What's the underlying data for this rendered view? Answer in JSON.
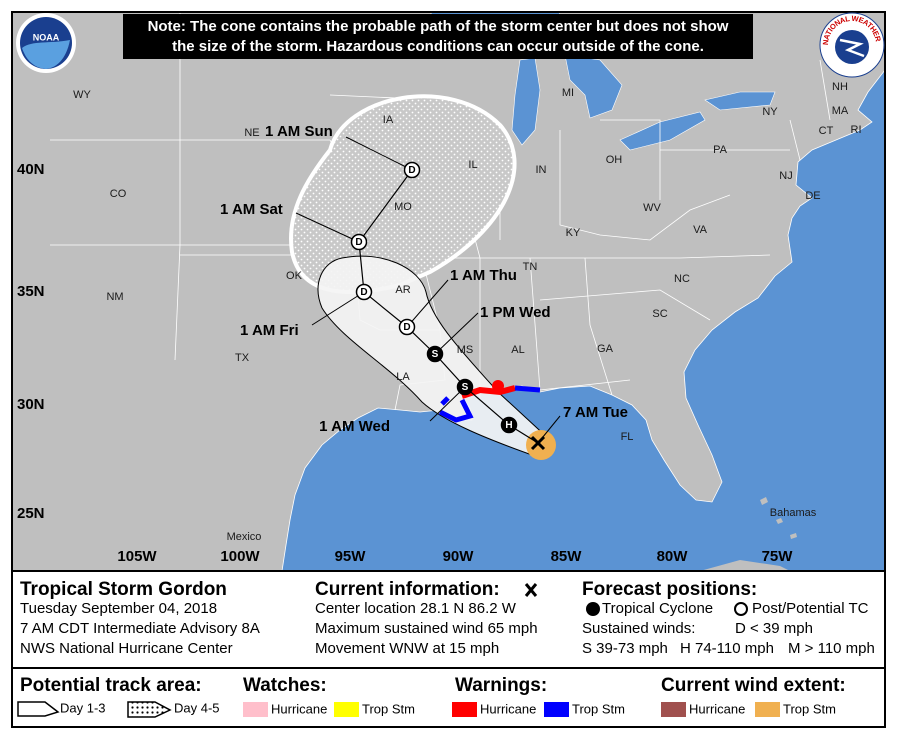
{
  "note": [
    "Note: The cone contains the probable path of the storm center but does not show",
    "the size of the storm. Hazardous conditions can occur outside of the cone."
  ],
  "logos": {
    "noaa": "NOAA",
    "nws": "NATIONAL WEATHER SERVICE"
  },
  "map": {
    "places": [
      "WY",
      "NE",
      "IA",
      "IL",
      "IN",
      "OH",
      "MI",
      "PA",
      "NY",
      "NH",
      "MA",
      "CT",
      "RI",
      "NJ",
      "DE",
      "CO",
      "MO",
      "KY",
      "WV",
      "VA",
      "TN",
      "NC",
      "OK",
      "AR",
      "NM",
      "SC",
      "MS",
      "AL",
      "GA",
      "TX",
      "LA",
      "FL",
      "Mexico",
      "Bahamas"
    ],
    "latitudes": [
      "40N",
      "35N",
      "30N",
      "25N"
    ],
    "longitudes": [
      "105W",
      "100W",
      "95W",
      "90W",
      "85W",
      "80W",
      "75W"
    ],
    "current_time": "7 AM Tue",
    "forecast": [
      {
        "time": null,
        "letter": "H"
      },
      {
        "time": "1 AM Wed",
        "letter": "S"
      },
      {
        "time": "1 PM Wed",
        "letter": "S"
      },
      {
        "time": "1 AM Thu",
        "letter": "D"
      },
      {
        "time": "1 AM Fri",
        "letter": "D"
      },
      {
        "time": "1 AM Sat",
        "letter": "D"
      },
      {
        "time": "1 AM Sun",
        "letter": "D"
      }
    ]
  },
  "storm": {
    "name": "Tropical Storm Gordon",
    "date": "Tuesday September 04, 2018",
    "advisory": "7 AM CDT Intermediate Advisory 8A",
    "center": "NWS National Hurricane Center"
  },
  "current": {
    "heading": "Current information:",
    "lines": [
      "Center location 28.1 N 86.2 W",
      "Maximum sustained wind 65 mph",
      "Movement WNW at 15 mph"
    ]
  },
  "forecast_legend": {
    "heading": "Forecast positions:",
    "tropical": "Tropical Cyclone",
    "post": "Post/Potential TC",
    "winds": "Sustained winds:",
    "d": "D < 39 mph",
    "s": "S 39-73 mph",
    "h": "H 74-110 mph",
    "m": "M > 110 mph"
  },
  "legend": {
    "track": {
      "heading": "Potential track area:",
      "day13": "Day 1-3",
      "day45": "Day 4-5"
    },
    "watches": {
      "heading": "Watches:",
      "hurricane": "Hurricane",
      "tropical": "Trop Stm"
    },
    "warnings": {
      "heading": "Warnings:",
      "hurricane": "Hurricane",
      "tropical": "Trop Stm"
    },
    "wind": {
      "heading": "Current wind extent:",
      "hurricane": "Hurricane",
      "tropical": "Trop Stm"
    }
  }
}
